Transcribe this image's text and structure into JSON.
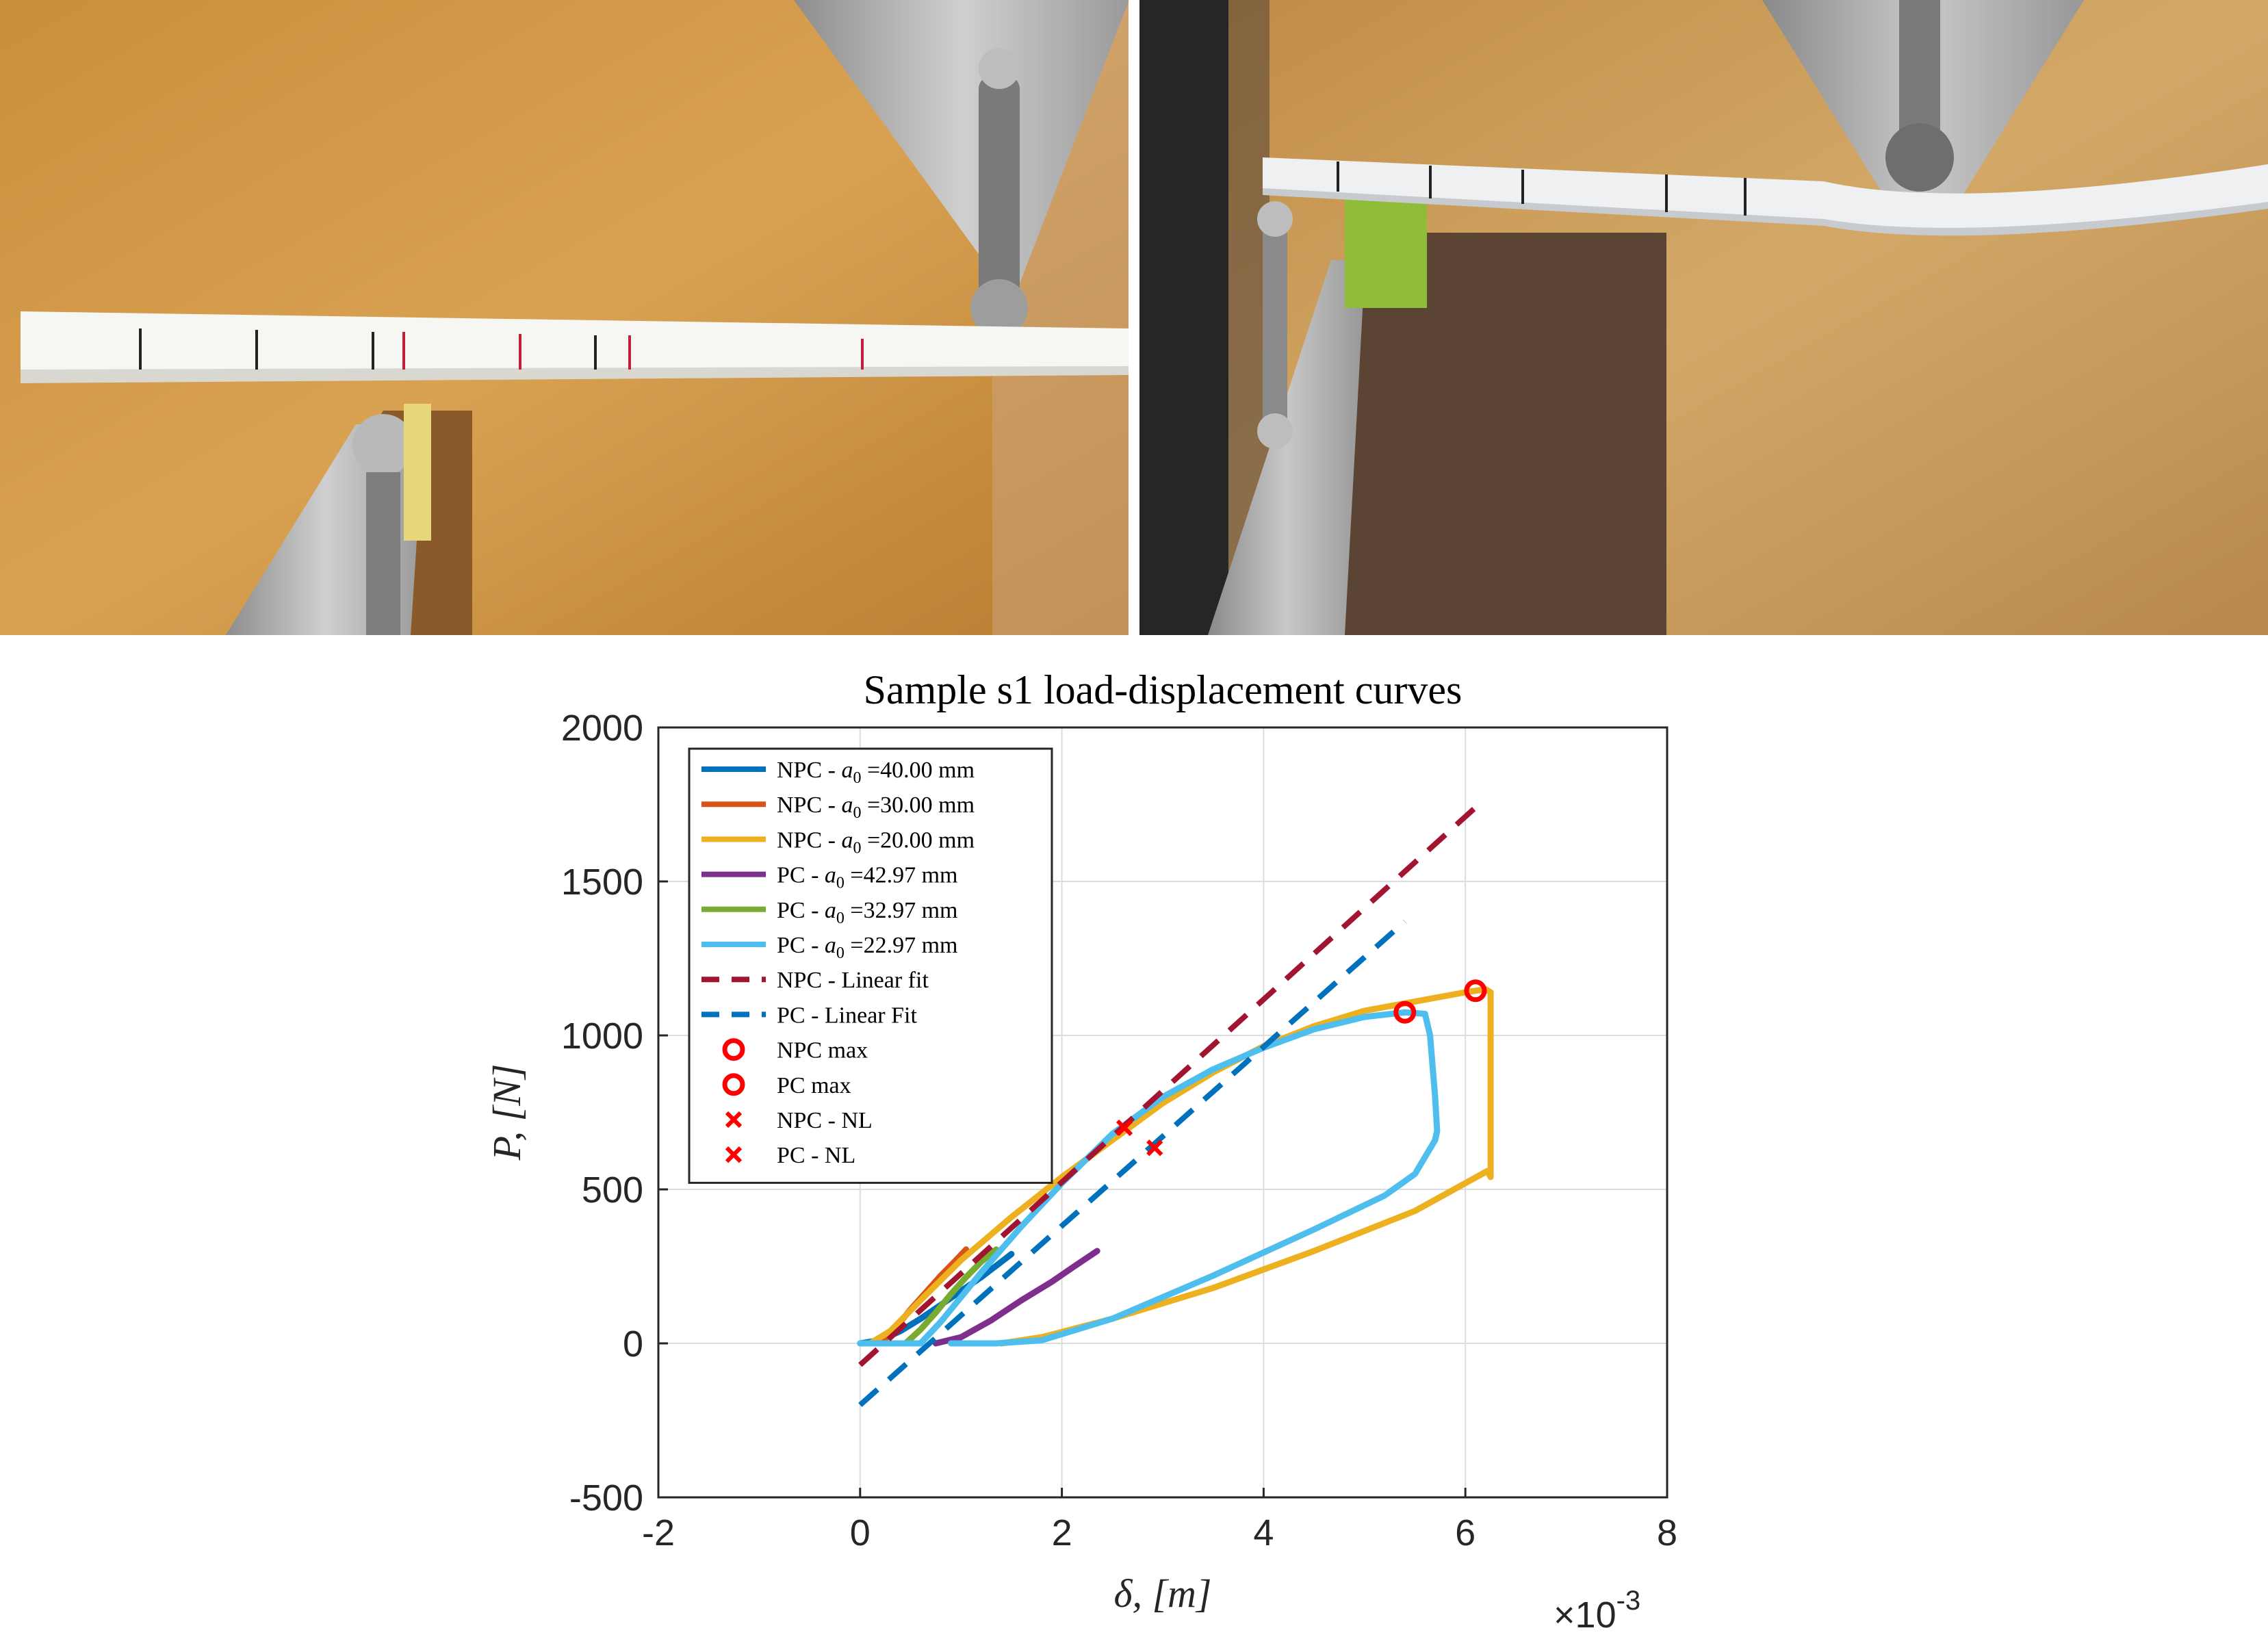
{
  "photos": [
    {
      "caption": ""
    },
    {
      "caption": ""
    }
  ],
  "chart_data": {
    "type": "line",
    "title": "Sample s1 load-displacement curves",
    "xlabel": "δ, [m]",
    "ylabel": "P, [N]",
    "x_exponent_label": "×10",
    "x_exponent_power": "-3",
    "xlim": [
      -2,
      8
    ],
    "ylim": [
      -500,
      2000
    ],
    "x_ticks": [
      -2,
      0,
      2,
      4,
      6,
      8
    ],
    "y_ticks": [
      -500,
      0,
      500,
      1000,
      1500,
      2000
    ],
    "x_tick_labels": [
      "-2",
      "0",
      "2",
      "4",
      "6",
      "8"
    ],
    "y_tick_labels": [
      "-500",
      "0",
      "500",
      "1000",
      "1500",
      "2000"
    ],
    "grid": true,
    "legend_position": "top-left",
    "series": [
      {
        "name": "NPC - a0 =40.00 mm",
        "label_prefix": "NPC - ",
        "label_sym": "a",
        "label_sub": "0",
        "label_suffix": " =40.00 mm",
        "color": "#0072BD",
        "style": "solid",
        "x": [
          0,
          0.2,
          0.4,
          0.6,
          0.8,
          1.0,
          1.2,
          1.4,
          1.5
        ],
        "y": [
          0,
          10,
          40,
          80,
          125,
          170,
          215,
          265,
          290
        ]
      },
      {
        "name": "NPC - a0 =30.00 mm",
        "label_prefix": "NPC - ",
        "label_sym": "a",
        "label_sub": "0",
        "label_suffix": " =30.00 mm",
        "color": "#D95319",
        "style": "solid",
        "x": [
          0.2,
          0.35,
          0.5,
          0.65,
          0.8,
          0.95,
          1.05
        ],
        "y": [
          0,
          50,
          110,
          165,
          220,
          270,
          305
        ]
      },
      {
        "name": "NPC - a0 =20.00 mm",
        "label_prefix": "NPC - ",
        "label_sym": "a",
        "label_sub": "0",
        "label_suffix": " =20.00 mm",
        "color": "#EDB120",
        "style": "solid",
        "x": [
          0,
          0.1,
          0.3,
          0.6,
          1.0,
          1.5,
          2.0,
          2.5,
          3.0,
          3.5,
          4.0,
          4.5,
          5.0,
          5.5,
          6.0,
          6.2,
          6.25,
          6.25,
          6.22,
          5.5,
          4.5,
          3.5,
          2.5,
          1.8,
          1.4
        ],
        "y": [
          0,
          0,
          40,
          140,
          270,
          410,
          540,
          660,
          780,
          880,
          965,
          1030,
          1080,
          1110,
          1140,
          1150,
          1140,
          540,
          560,
          430,
          300,
          180,
          80,
          20,
          0
        ]
      },
      {
        "name": "PC - a0 =42.97 mm",
        "label_prefix": "PC - ",
        "label_sym": "a",
        "label_sub": "0",
        "label_suffix": " =42.97 mm",
        "color": "#7E2F8E",
        "style": "solid",
        "x": [
          0.75,
          1.0,
          1.3,
          1.6,
          1.9,
          2.1,
          2.35
        ],
        "y": [
          0,
          20,
          75,
          140,
          200,
          245,
          300
        ]
      },
      {
        "name": "PC - a0 =32.97 mm",
        "label_prefix": "PC - ",
        "label_sym": "a",
        "label_sub": "0",
        "label_suffix": " =32.97 mm",
        "color": "#77AC30",
        "style": "solid",
        "x": [
          0.45,
          0.6,
          0.75,
          0.9,
          1.05,
          1.2,
          1.35
        ],
        "y": [
          0,
          45,
          100,
          160,
          215,
          265,
          305
        ]
      },
      {
        "name": "PC - a0 =22.97 mm",
        "label_prefix": "PC - ",
        "label_sym": "a",
        "label_sub": "0",
        "label_suffix": " =22.97 mm",
        "color": "#4DBEEE",
        "style": "solid",
        "x": [
          0,
          0.6,
          0.8,
          1.2,
          1.6,
          2.0,
          2.5,
          3.0,
          3.5,
          4.0,
          4.5,
          5.0,
          5.4,
          5.6,
          5.65,
          5.7,
          5.72,
          5.7,
          5.5,
          5.2,
          4.5,
          3.5,
          2.5,
          1.8,
          1.35,
          0.9
        ],
        "y": [
          0,
          0,
          70,
          230,
          380,
          520,
          680,
          800,
          890,
          960,
          1020,
          1060,
          1075,
          1070,
          1000,
          800,
          690,
          660,
          550,
          480,
          370,
          220,
          80,
          10,
          0,
          0
        ]
      },
      {
        "name": "NPC - Linear fit",
        "label_prefix": "NPC - Linear fit",
        "label_sym": "",
        "label_sub": "",
        "label_suffix": "",
        "color": "#A2142F",
        "style": "dashed",
        "x": [
          0,
          6.1
        ],
        "y": [
          -70,
          1740
        ]
      },
      {
        "name": "PC - Linear Fit",
        "label_prefix": "PC - Linear Fit",
        "label_sym": "",
        "label_sub": "",
        "label_suffix": "",
        "color": "#0072BD",
        "style": "dashed",
        "x": [
          0,
          5.4
        ],
        "y": [
          -200,
          1370
        ]
      }
    ],
    "markers": [
      {
        "name": "NPC max",
        "shape": "circle",
        "color": "#FF0000",
        "points": [
          [
            6.1,
            1145
          ]
        ]
      },
      {
        "name": "PC max",
        "shape": "circle",
        "color": "#FF0000",
        "points": [
          [
            5.4,
            1075
          ]
        ]
      },
      {
        "name": "NPC - NL",
        "shape": "x",
        "color": "#FF0000",
        "points": [
          [
            2.62,
            700
          ]
        ]
      },
      {
        "name": "PC - NL",
        "shape": "x",
        "color": "#FF0000",
        "points": [
          [
            2.92,
            635
          ]
        ]
      }
    ]
  }
}
